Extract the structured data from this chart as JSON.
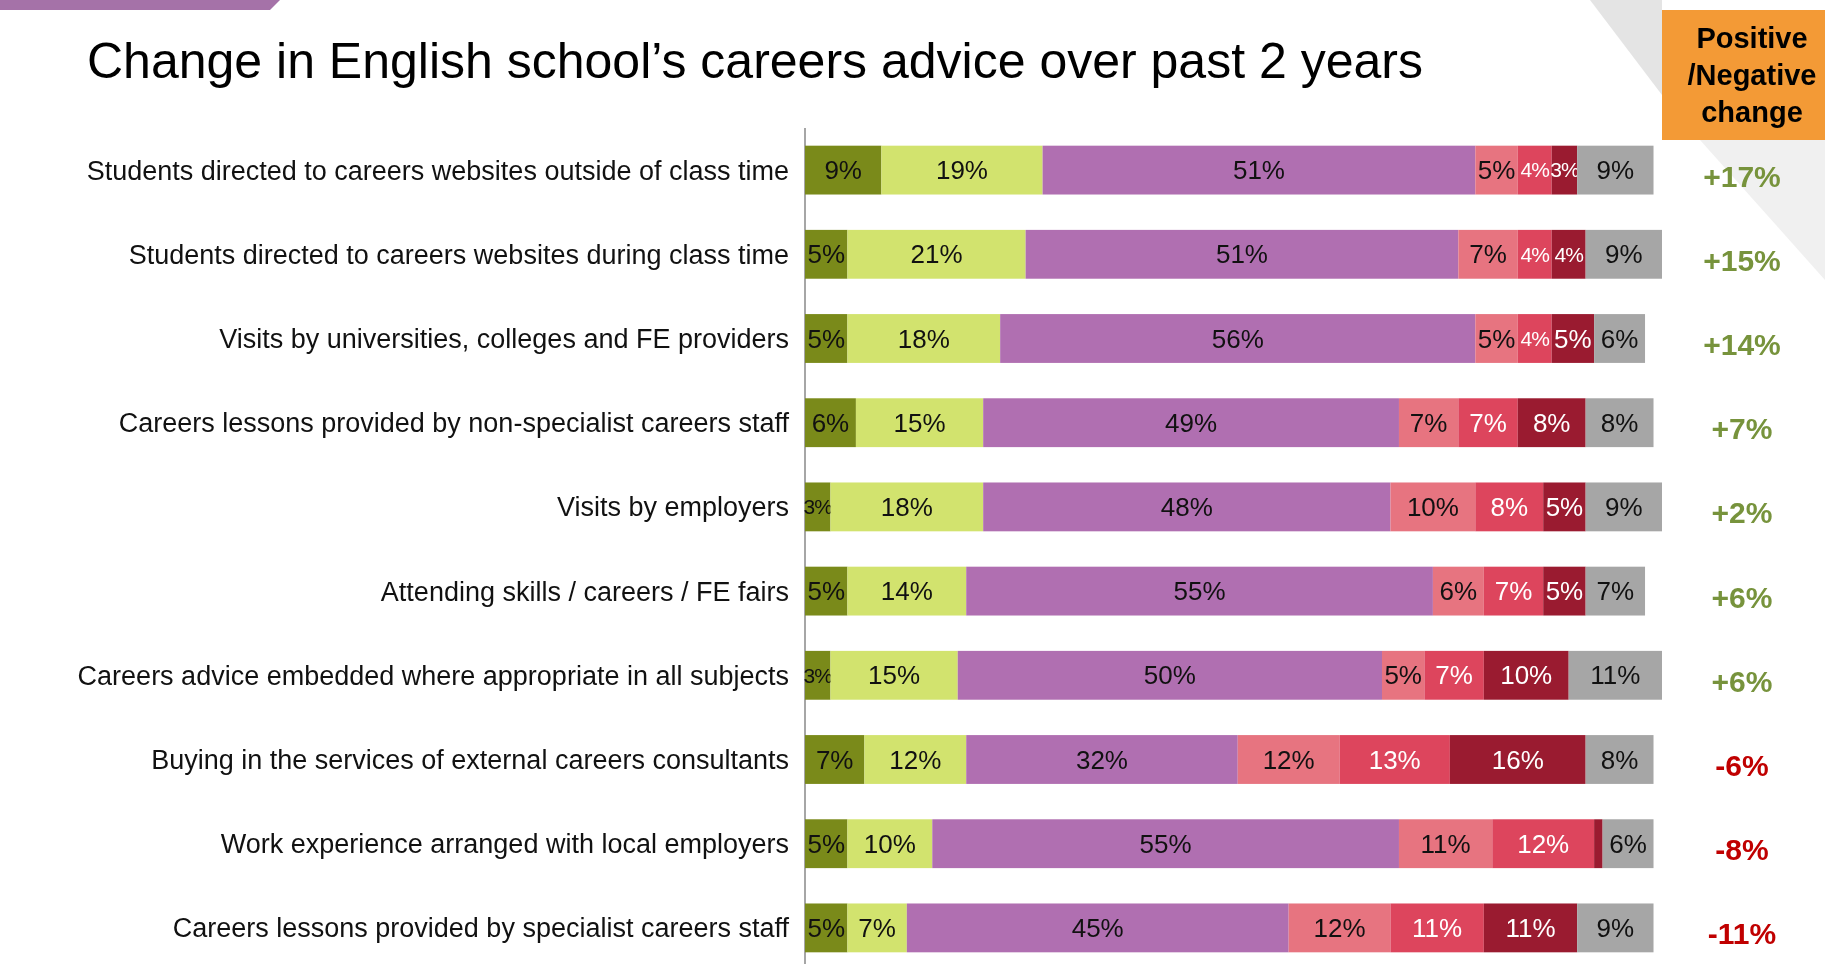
{
  "chart_data": {
    "type": "bar",
    "orientation": "horizontal",
    "stacked": true,
    "title": "Change in English school’s careers advice over past 2 years",
    "categories": [
      "Students directed to careers websites outside of class time",
      "Students directed to careers websites during class time",
      "Visits by universities, colleges and FE providers",
      "Careers lessons provided by non-specialist careers staff",
      "Visits by employers",
      "Attending skills / careers / FE fairs",
      "Careers advice embedded where appropriate in all subjects",
      "Buying in the services of external careers consultants",
      "Work experience arranged with local employers",
      "Careers lessons provided by specialist careers staff"
    ],
    "series": [
      {
        "color": "#7a8a1a",
        "values": [
          9,
          5,
          5,
          6,
          3,
          5,
          3,
          7,
          5,
          5
        ],
        "value_labels": [
          "9%",
          "5%",
          "5%",
          "6%",
          "3%",
          "5%",
          "3%",
          "7%",
          "5%",
          "5%"
        ]
      },
      {
        "color": "#d2e36e",
        "values": [
          19,
          21,
          18,
          15,
          18,
          14,
          15,
          12,
          10,
          7
        ],
        "value_labels": [
          "19%",
          "21%",
          "18%",
          "15%",
          "18%",
          "14%",
          "15%",
          "12%",
          "10%",
          "7%"
        ]
      },
      {
        "color": "#b06fb1",
        "values": [
          51,
          51,
          56,
          49,
          48,
          55,
          50,
          32,
          55,
          45
        ],
        "value_labels": [
          "51%",
          "51%",
          "56%",
          "49%",
          "48%",
          "55%",
          "50%",
          "32%",
          "55%",
          "45%"
        ]
      },
      {
        "color": "#e77480",
        "values": [
          5,
          7,
          5,
          7,
          10,
          6,
          5,
          12,
          11,
          12
        ],
        "value_labels": [
          "5%",
          "7%",
          "5%",
          "7%",
          "10%",
          "6%",
          "5%",
          "12%",
          "11%",
          "12%"
        ]
      },
      {
        "color": "#dd455d",
        "values": [
          4,
          4,
          4,
          7,
          8,
          7,
          7,
          13,
          12,
          11
        ],
        "value_labels": [
          "4%",
          "4%",
          "4%",
          "7%",
          "8%",
          "7%",
          "7%",
          "13%",
          "12%",
          "11%"
        ]
      },
      {
        "color": "#9a1b30",
        "values": [
          3,
          4,
          5,
          8,
          5,
          5,
          10,
          16,
          1,
          11
        ],
        "value_labels": [
          "3%",
          "4%",
          "5%",
          "8%",
          "5%",
          "5%",
          "10%",
          "16%",
          null,
          "11%"
        ]
      },
      {
        "color": "#a6a6a6",
        "values": [
          9,
          9,
          6,
          8,
          9,
          7,
          11,
          8,
          6,
          9
        ],
        "value_labels": [
          "9%",
          "9%",
          "6%",
          "8%",
          "9%",
          "7%",
          "11%",
          "8%",
          "6%",
          "9%"
        ]
      }
    ],
    "annotations": [
      "Positive /Negative change",
      "+17%",
      "+15%",
      "+14%",
      "+7%",
      "+2%",
      "+6%",
      "+6%",
      "-6%",
      "-8%",
      "-11%"
    ]
  }
}
